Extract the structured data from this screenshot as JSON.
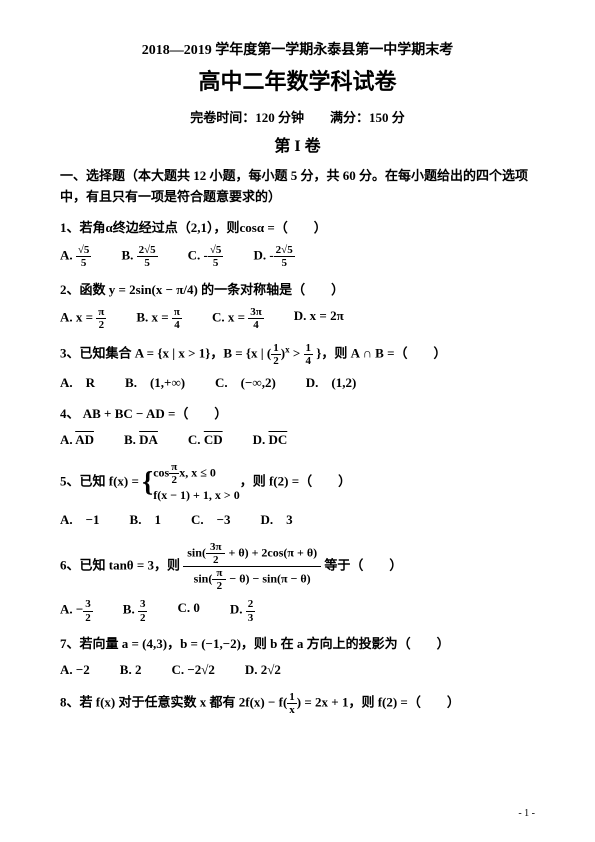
{
  "header": "2018—2019 学年度第一学期永泰县第一中学期末考",
  "title": "高中二年数学科试卷",
  "meta": "完卷时间：120 分钟　　满分：150 分",
  "section": "第 I 卷",
  "instructions": "一、选择题（本大题共 12 小题，每小题 5 分，共 60 分。在每小题给出的四个选项中，有且只有一项是符合题意要求的）",
  "q1": {
    "text": "1、若角α终边经过点（2,1），则cosα =（　　）",
    "a": "A.",
    "b": "B.",
    "c": "C.",
    "d": "D.",
    "av_num": "√5",
    "av_den": "5",
    "bv_num": "2√5",
    "bv_den": "5",
    "cv_num": "√5",
    "cv_den": "5",
    "dv_num": "2√5",
    "dv_den": "5"
  },
  "q2": {
    "text": "2、函数 y = 2sin(x − π/4) 的一条对称轴是（　　）",
    "a": "A. x =",
    "av_num": "π",
    "av_den": "2",
    "b": "B. x =",
    "bv_num": "π",
    "bv_den": "4",
    "c": "C. x =",
    "cv_num": "3π",
    "cv_den": "4",
    "d": "D. x = 2π"
  },
  "q3": {
    "text_pre": "3、已知集合 A = {x | x > 1}，B = {x | ",
    "frac_num": "1",
    "frac_den": "2",
    "sup": "x",
    "gt_num": "1",
    "gt_den": "4",
    "text_post": " }，则 A ∩ B =（　　）",
    "a": "A.　R",
    "b": "B.　(1,+∞)",
    "c": "C.　(−∞,2)",
    "d": "D.　(1,2)"
  },
  "q4": {
    "text": "4、 AB + BC − AD =（　　）",
    "a": "A.",
    "av": "AD",
    "b": "B.",
    "bv": "DA",
    "c": "C.",
    "cv": "CD",
    "d": "D.",
    "dv": "DC"
  },
  "q5": {
    "text_pre": "5、已知 f(x) = ",
    "line1_pre": "cos",
    "line1_frac_num": "π",
    "line1_frac_den": "2",
    "line1_post": "x, x ≤ 0",
    "line2": "f(x − 1) + 1, x > 0",
    "text_post": "，则 f(2) =（　　）",
    "a": "A.　−1",
    "b": "B.　1",
    "c": "C.　−3",
    "d": "D.　3"
  },
  "q6": {
    "text_pre": "6、已知 tanθ = 3，则 ",
    "num_pre": "sin",
    "num_f1_num": "3π",
    "num_f1_den": "2",
    "num_mid": " + θ) + 2cos(π + θ)",
    "den_pre": "sin",
    "den_f1_num": "π",
    "den_f1_den": "2",
    "den_mid": " − θ) − sin(π − θ)",
    "text_post": " 等于（　　）",
    "a": "A. −",
    "av_num": "3",
    "av_den": "2",
    "b": "B.",
    "bv_num": "3",
    "bv_den": "2",
    "c": "C. 0",
    "d": "D.",
    "dv_num": "2",
    "dv_den": "3"
  },
  "q7": {
    "text": "7、若向量 a = (4,3)，b = (−1,−2)，则 b 在 a 方向上的投影为（　　）",
    "a": "A. −2",
    "b": "B. 2",
    "c": "C. −2√2",
    "d": "D. 2√2"
  },
  "q8": {
    "text_pre": "8、若 f(x) 对于任意实数 x 都有 2f(x) − f(",
    "frac_num": "1",
    "frac_den": "x",
    "text_post": ") = 2x + 1，则 f(2) =（　　）"
  },
  "pagenum": "- 1 -"
}
